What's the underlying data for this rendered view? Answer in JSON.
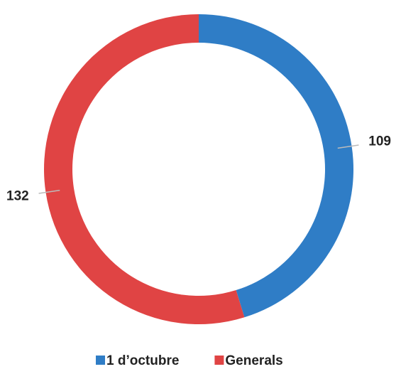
{
  "chart_data": {
    "type": "donut",
    "categories": [
      "1 d’octubre",
      "Generals"
    ],
    "values": [
      109,
      132
    ],
    "colors": [
      "#2f7dc6",
      "#e04444"
    ],
    "legend": "bottom"
  }
}
